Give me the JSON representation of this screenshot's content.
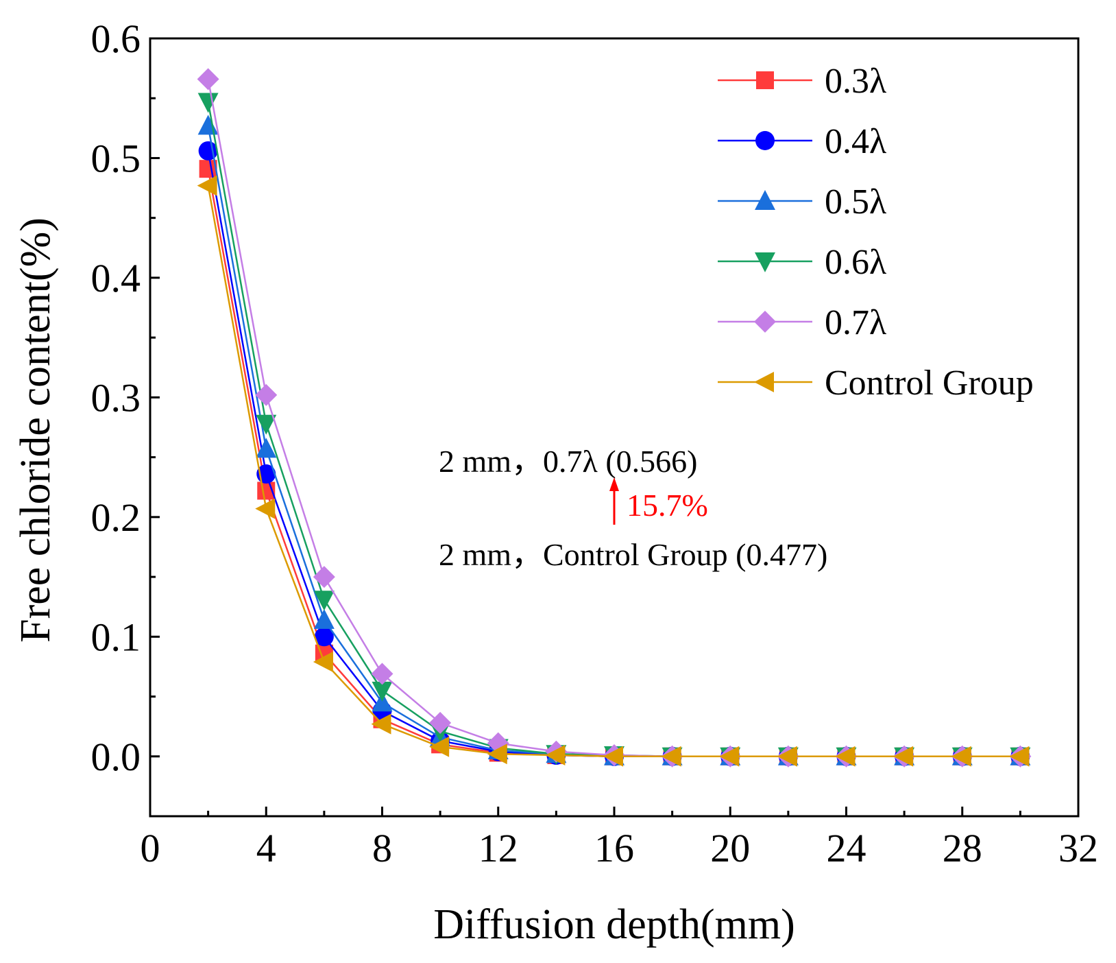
{
  "chart_data": {
    "type": "line",
    "title": "",
    "xlabel": "Diffusion depth(mm)",
    "ylabel": "Free chloride content(%)",
    "xlim": [
      0,
      32
    ],
    "ylim": [
      -0.05,
      0.6
    ],
    "xticks": [
      0,
      4,
      8,
      12,
      16,
      20,
      24,
      28,
      32
    ],
    "xtick_labels": [
      "0",
      "4",
      "8",
      "12",
      "16",
      "20",
      "24",
      "28",
      "32"
    ],
    "yticks": [
      0.0,
      0.1,
      0.2,
      0.3,
      0.4,
      0.5,
      0.6
    ],
    "ytick_labels": [
      "0.0",
      "0.1",
      "0.2",
      "0.3",
      "0.4",
      "0.5",
      "0.6"
    ],
    "grid": false,
    "legend_position": "top-right",
    "x": [
      2,
      4,
      6,
      8,
      10,
      12,
      14,
      16,
      18,
      20,
      22,
      24,
      26,
      28,
      30
    ],
    "series": [
      {
        "name": "0.3λ",
        "color": "#ff3b3b",
        "marker": "square",
        "values": [
          0.491,
          0.222,
          0.086,
          0.031,
          0.01,
          0.003,
          0.001,
          0.0,
          0.0,
          0.0,
          0.0,
          0.0,
          0.0,
          0.0,
          0.0
        ]
      },
      {
        "name": "0.4λ",
        "color": "#0000ff",
        "marker": "circle",
        "values": [
          0.506,
          0.236,
          0.1,
          0.038,
          0.013,
          0.004,
          0.001,
          0.0,
          0.0,
          0.0,
          0.0,
          0.0,
          0.0,
          0.0,
          0.0
        ]
      },
      {
        "name": "0.5λ",
        "color": "#1a6fdc",
        "marker": "triangle-up",
        "values": [
          0.527,
          0.257,
          0.114,
          0.045,
          0.016,
          0.005,
          0.002,
          0.0,
          0.0,
          0.0,
          0.0,
          0.0,
          0.0,
          0.0,
          0.0
        ]
      },
      {
        "name": "0.6λ",
        "color": "#17a060",
        "marker": "triangle-down",
        "values": [
          0.547,
          0.278,
          0.131,
          0.055,
          0.021,
          0.007,
          0.002,
          0.001,
          0.0,
          0.0,
          0.0,
          0.0,
          0.0,
          0.0,
          0.0
        ]
      },
      {
        "name": "0.7λ",
        "color": "#c47ee6",
        "marker": "diamond",
        "values": [
          0.566,
          0.302,
          0.15,
          0.069,
          0.028,
          0.011,
          0.004,
          0.001,
          0.0,
          0.0,
          0.0,
          0.0,
          0.0,
          0.0,
          0.0
        ]
      },
      {
        "name": "Control Group",
        "color": "#dc9a00",
        "marker": "triangle-left",
        "values": [
          0.477,
          0.207,
          0.079,
          0.027,
          0.008,
          0.002,
          0.001,
          0.0,
          0.0,
          0.0,
          0.0,
          0.0,
          0.0,
          0.0,
          0.0
        ]
      }
    ],
    "annotations": {
      "line1": "2 mm，0.7λ (0.566)",
      "arrow_color": "#ff0000",
      "increase": "15.7%",
      "line2": "2 mm，Control Group (0.477)"
    }
  }
}
